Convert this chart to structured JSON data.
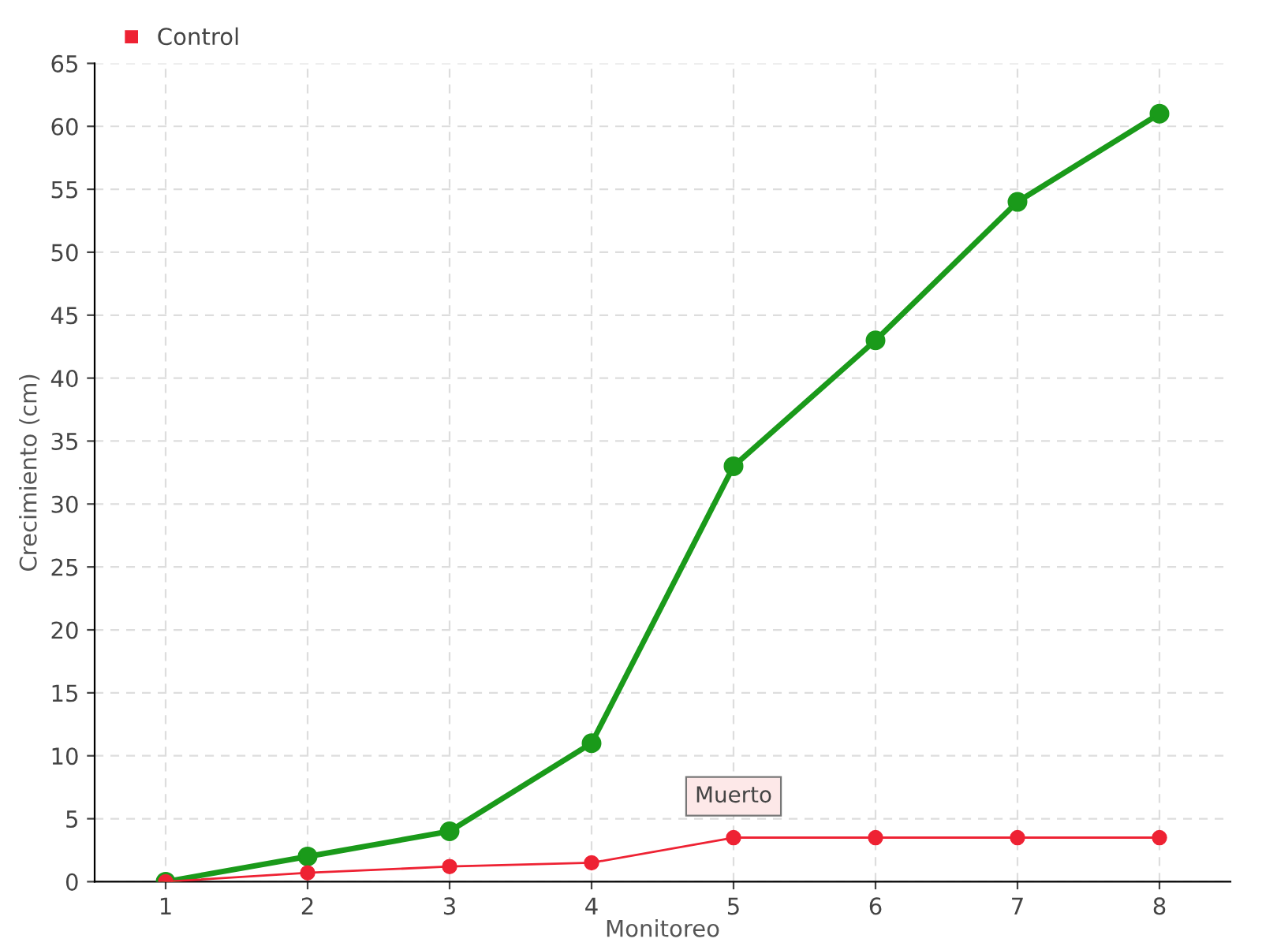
{
  "chart_data": {
    "type": "line",
    "xlabel": "Monitoreo",
    "ylabel": "Crecimiento (cm)",
    "x": [
      1,
      2,
      3,
      4,
      5,
      6,
      7,
      8
    ],
    "series": [
      {
        "color": "#1a9a1a",
        "values": [
          0,
          2,
          4,
          11,
          33,
          43,
          54,
          61
        ]
      },
      {
        "name": "Control",
        "color": "#ee2233",
        "values": [
          0,
          0.7,
          1.2,
          1.5,
          3.5,
          3.5,
          3.5,
          3.5
        ]
      }
    ],
    "annotations": [
      {
        "text": "Muerto",
        "x": 5,
        "y": 3.5
      }
    ],
    "xlim": [
      0.5,
      8.5
    ],
    "xticks": [
      1,
      2,
      3,
      4,
      5,
      6,
      7,
      8
    ],
    "ylim": [
      0,
      65
    ],
    "yticks": [
      0,
      5,
      10,
      15,
      20,
      25,
      30,
      35,
      40,
      45,
      50,
      55,
      60,
      65
    ],
    "grid": true,
    "legend": "top left",
    "marker": "circle",
    "line_style": "solid"
  }
}
